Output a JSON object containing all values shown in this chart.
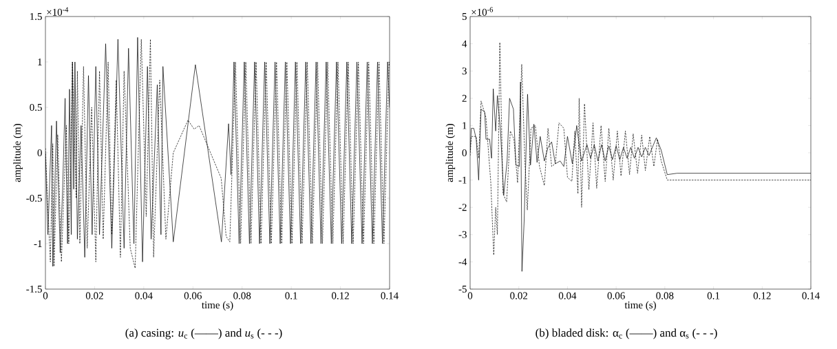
{
  "chart_data": [
    {
      "type": "line",
      "title": "(a)  casing: *u*$_{c}$ (——) and *u*$_{s}$ (- - -)",
      "xlabel": "time (s)",
      "ylabel": "amplitude (m)",
      "annotations": [
        "×10$^{-4}$"
      ],
      "xlim": [
        0,
        0.14
      ],
      "xticks": [
        0,
        0.02,
        0.04,
        0.06,
        0.08,
        0.1,
        0.12,
        0.14
      ],
      "ylim": [
        -1.5,
        1.5
      ],
      "yticks": [
        -1.5,
        -1,
        -0.5,
        0,
        0.5,
        1,
        1.5
      ],
      "series": [
        {
          "color": "#000000",
          "line_style": "solid",
          "x": [
            0,
            0.001,
            0.0025,
            0.003,
            0.0045,
            0.006,
            0.007,
            0.008,
            0.009,
            0.0098,
            0.0105,
            0.011,
            0.0115,
            0.012,
            0.013,
            0.0145,
            0.016,
            0.0175,
            0.019,
            0.0205,
            0.022,
            0.0245,
            0.027,
            0.0295,
            0.032,
            0.0338,
            0.036,
            0.0375,
            0.0395,
            0.0415,
            0.043,
            0.0455,
            0.047,
            0.0478,
            0.052,
            0.061,
            0.0716,
            0.0745,
            0.0755,
            0.0767,
            0.0788,
            0.0809,
            0.083,
            0.0851,
            0.0871,
            0.0892,
            0.0913,
            0.0934,
            0.0955,
            0.0976,
            0.0997,
            0.1017,
            0.1038,
            0.1059,
            0.108,
            0.1101,
            0.1121,
            0.1142,
            0.1163,
            0.1184,
            0.1205,
            0.1226,
            0.1246,
            0.1267,
            0.1288,
            0.1309,
            0.133,
            0.1351,
            0.1371,
            0.1392,
            0.14
          ],
          "values": [
            0,
            -0.9,
            0.3,
            -1.25,
            0.35,
            -1.1,
            -0.4,
            0.6,
            -1.0,
            0.7,
            -0.9,
            1.0,
            -0.4,
            1.0,
            -0.95,
            0.3,
            -1.15,
            0.85,
            -0.9,
            0.95,
            -0.9,
            1.2,
            -1.05,
            1.25,
            -1.05,
            1.15,
            -1.0,
            1.27,
            -1.2,
            0.95,
            -0.95,
            0.75,
            -0.9,
            0.95,
            -0.98,
            0.97,
            -0.98,
            0.32,
            -0.24,
            1.0,
            -1.0,
            1.0,
            -1.0,
            1.0,
            -1.0,
            1.0,
            -1.0,
            1.0,
            -1.0,
            1.0,
            -1.0,
            1.0,
            -1.0,
            1.0,
            -1.0,
            1.0,
            -1.0,
            1.0,
            -1.0,
            1.0,
            -1.0,
            1.0,
            -1.0,
            1.0,
            -1.0,
            1.0,
            -1.0,
            1.0,
            -1.0,
            1.0,
            0.5
          ]
        },
        {
          "color": "#000000",
          "line_style": "dashed",
          "x": [
            0,
            0.001,
            0.002,
            0.003,
            0.0035,
            0.005,
            0.0065,
            0.0085,
            0.0095,
            0.011,
            0.0125,
            0.013,
            0.014,
            0.0155,
            0.017,
            0.0188,
            0.0205,
            0.022,
            0.0235,
            0.0255,
            0.027,
            0.0288,
            0.0305,
            0.032,
            0.0345,
            0.0365,
            0.039,
            0.041,
            0.0427,
            0.044,
            0.0465,
            0.049,
            0.052,
            0.058,
            0.0605,
            0.0625,
            0.0715,
            0.0735,
            0.075,
            0.0773,
            0.0794,
            0.0815,
            0.0836,
            0.0857,
            0.0877,
            0.0898,
            0.0919,
            0.094,
            0.0961,
            0.0982,
            0.1003,
            0.1023,
            0.1044,
            0.1065,
            0.1086,
            0.1107,
            0.1127,
            0.1148,
            0.1169,
            0.119,
            0.1211,
            0.1232,
            0.1252,
            0.1273,
            0.1294,
            0.1315,
            0.1336,
            0.1357,
            0.1377,
            0.1398,
            0.14
          ],
          "values": [
            0.05,
            -0.6,
            -1.2,
            0.1,
            -1.25,
            0.2,
            -1.2,
            0.3,
            -1.0,
            1.0,
            -0.5,
            0.9,
            -1.0,
            0.95,
            -1.05,
            0.5,
            -1.2,
            0.9,
            -0.95,
            1.0,
            -0.9,
            0.8,
            -1.15,
            0.9,
            -1.05,
            -1.27,
            1.25,
            -0.7,
            1.25,
            -1.15,
            0.8,
            -0.95,
            0,
            0.36,
            0.26,
            0.3,
            -0.28,
            -0.92,
            -0.98,
            1.0,
            -1.0,
            1.0,
            -1.0,
            1.0,
            -1.0,
            1.0,
            -1.0,
            1.0,
            -1.0,
            1.0,
            -1.0,
            1.0,
            -1.0,
            1.0,
            -1.0,
            1.0,
            -1.0,
            1.0,
            -1.0,
            1.0,
            -1.0,
            1.0,
            -1.0,
            1.0,
            -1.0,
            1.0,
            -1.0,
            1.0,
            -1.0,
            1.0,
            0.95
          ]
        }
      ]
    },
    {
      "type": "line",
      "title": "(b)  bladed disk: α$_{c}$ (——) and α$_{s}$ (- - -)",
      "xlabel": "time (s)",
      "ylabel": "amplitude (m)",
      "annotations": [
        "×10$^{-6}$"
      ],
      "xlim": [
        0,
        0.14
      ],
      "xticks": [
        0,
        0.02,
        0.04,
        0.06,
        0.08,
        0.1,
        0.12,
        0.14
      ],
      "ylim": [
        -5,
        5
      ],
      "yticks": [
        -5,
        -4,
        -3,
        -2,
        -1,
        0,
        1,
        2,
        3,
        4,
        5
      ],
      "series": [
        {
          "color": "#000000",
          "line_style": "solid",
          "x": [
            0,
            0.0005,
            0.0015,
            0.0025,
            0.0035,
            0.0045,
            0.006,
            0.0065,
            0.008,
            0.0088,
            0.0095,
            0.0105,
            0.0112,
            0.0125,
            0.0138,
            0.0152,
            0.0162,
            0.0178,
            0.0188,
            0.0202,
            0.0207,
            0.0213,
            0.0222,
            0.0236,
            0.0248,
            0.0262,
            0.0275,
            0.0288,
            0.0305,
            0.032,
            0.0335,
            0.035,
            0.037,
            0.0385,
            0.04,
            0.042,
            0.0438,
            0.0448,
            0.0458,
            0.048,
            0.0495,
            0.051,
            0.0525,
            0.054,
            0.0555,
            0.057,
            0.0585,
            0.06,
            0.0615,
            0.063,
            0.0645,
            0.066,
            0.0675,
            0.069,
            0.0705,
            0.072,
            0.0735,
            0.0765,
            0.0785,
            0.081,
            0.085,
            0.14
          ],
          "values": [
            0.05,
            0.9,
            0.9,
            0.5,
            -1.0,
            1.6,
            1.5,
            0.5,
            0.5,
            -0.2,
            2.35,
            0.8,
            2.1,
            0.8,
            -1.55,
            -0.3,
            2.0,
            1.6,
            -0.45,
            -0.5,
            2.6,
            -4.35,
            -2.5,
            2.15,
            -0.45,
            1.05,
            -0.35,
            0.6,
            -0.3,
            0.2,
            0.4,
            -0.4,
            -0.3,
            -0.5,
            0.6,
            -0.4,
            1.0,
            0.3,
            -0.3,
            0.3,
            -0.2,
            0.3,
            -0.3,
            0.3,
            -0.3,
            0.25,
            -0.25,
            0.25,
            -0.25,
            0.2,
            -0.2,
            0.2,
            -0.2,
            0.2,
            -0.15,
            0.2,
            -0.1,
            0.55,
            0.1,
            -0.8,
            -0.75,
            -0.75
          ]
        },
        {
          "color": "#000000",
          "line_style": "dashed",
          "x": [
            0,
            0.0005,
            0.0025,
            0.0035,
            0.0045,
            0.0065,
            0.0085,
            0.0097,
            0.0105,
            0.0112,
            0.0122,
            0.0135,
            0.015,
            0.0165,
            0.018,
            0.0195,
            0.0212,
            0.0225,
            0.0235,
            0.025,
            0.0268,
            0.0285,
            0.0305,
            0.032,
            0.0335,
            0.035,
            0.0365,
            0.0385,
            0.04,
            0.0418,
            0.043,
            0.0443,
            0.0448,
            0.0458,
            0.047,
            0.0488,
            0.0505,
            0.052,
            0.0538,
            0.0555,
            0.057,
            0.0588,
            0.0605,
            0.062,
            0.0638,
            0.0655,
            0.067,
            0.0688,
            0.0705,
            0.072,
            0.0738,
            0.0755,
            0.077,
            0.0785,
            0.081,
            0.085,
            0.14
          ],
          "values": [
            -0.1,
            0.6,
            0.6,
            -0.2,
            1.9,
            1.3,
            -1.1,
            -3.75,
            -2.0,
            -3.0,
            4.05,
            -1.5,
            -1.8,
            0.8,
            0.5,
            -1.1,
            3.25,
            -0.3,
            -2.1,
            0.9,
            1.0,
            -0.5,
            -1.2,
            0.9,
            -0.5,
            -0.4,
            1.1,
            0.9,
            -0.9,
            -1.05,
            0.8,
            -1.5,
            2.0,
            -2.0,
            1.8,
            -1.35,
            1.1,
            -1.3,
            1.0,
            -1.05,
            0.9,
            -1.0,
            0.8,
            -0.85,
            0.8,
            -0.8,
            0.7,
            -0.75,
            0.65,
            -0.65,
            0.6,
            -0.5,
            0.5,
            -0.3,
            -1.0,
            -1.0,
            -1.0
          ]
        }
      ]
    }
  ]
}
